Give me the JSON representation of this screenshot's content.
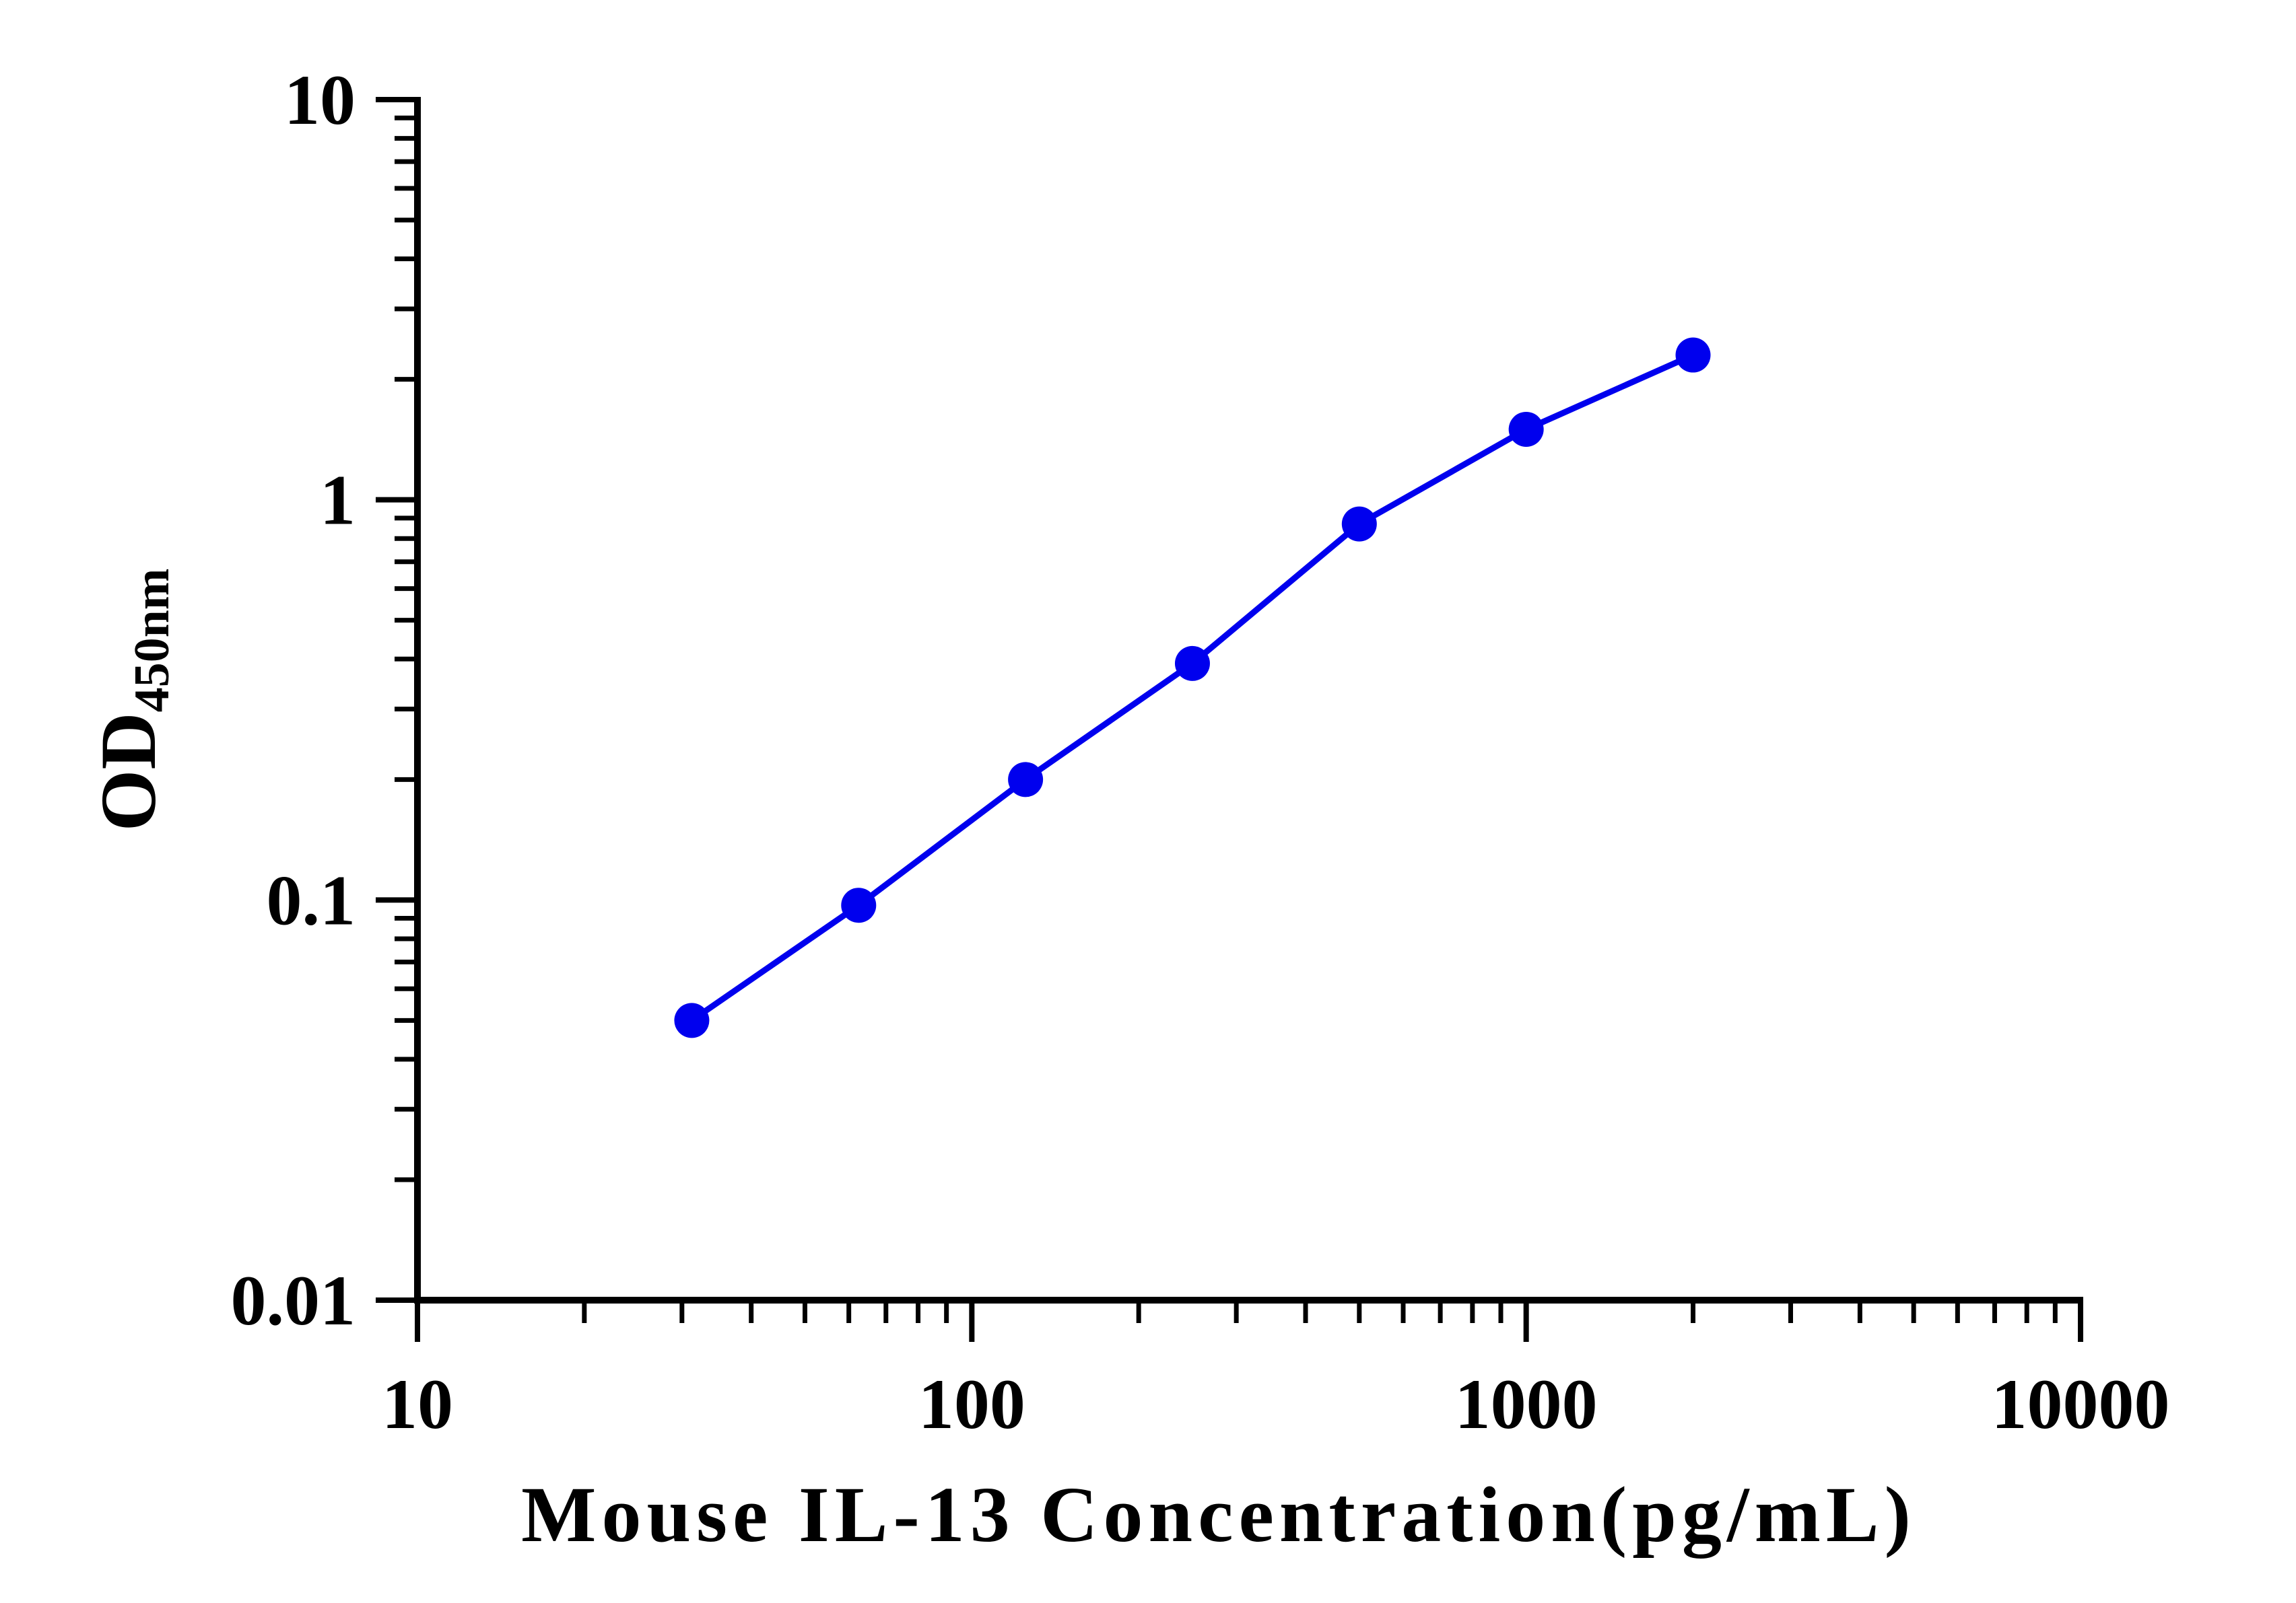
{
  "chart_data": {
    "type": "line",
    "xlabel": "Mouse IL-13 Concentration(pg/mL)",
    "ylabel": {
      "main": "OD",
      "subscript": "450nm"
    },
    "xscale": "log",
    "yscale": "log",
    "xlim": [
      10,
      10000
    ],
    "ylim": [
      0.01,
      10
    ],
    "xticks": [
      10,
      100,
      1000,
      10000
    ],
    "xtick_labels": [
      "10",
      "100",
      "1000",
      "10000"
    ],
    "yticks": [
      0.01,
      0.1,
      1,
      10
    ],
    "ytick_labels": [
      "0.01",
      "0.1",
      "1",
      "10"
    ],
    "grid": false,
    "series": [
      {
        "color": "#0000ee",
        "x": [
          31.25,
          62.5,
          125,
          250,
          500,
          1000,
          2000
        ],
        "y": [
          0.05,
          0.097,
          0.2,
          0.39,
          0.87,
          1.5,
          2.3
        ]
      }
    ]
  }
}
